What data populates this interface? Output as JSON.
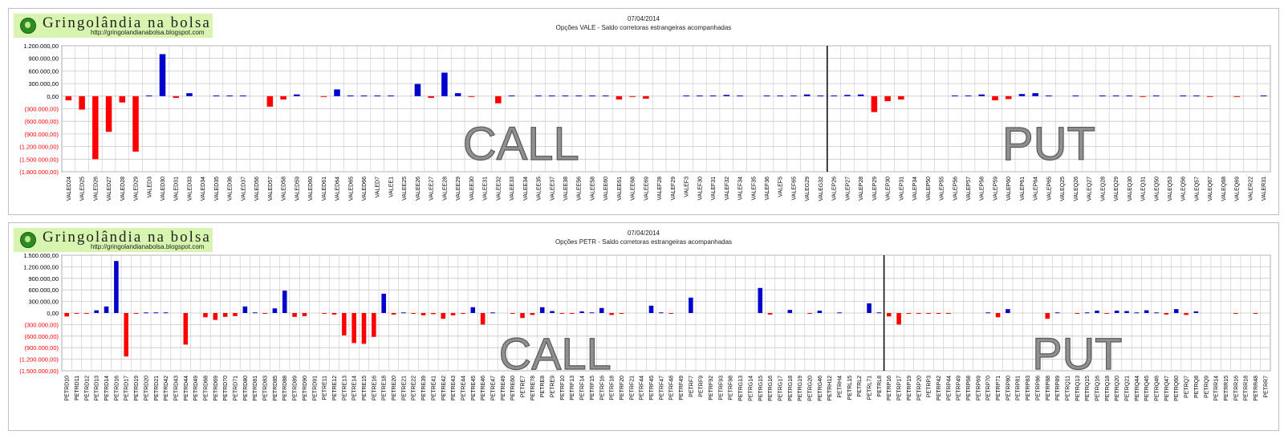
{
  "panels": [
    {
      "logo": {
        "title": "Gringolândia na bolsa",
        "url": "http://gringolandianabolsa.blogspot.com"
      },
      "date": "07/04/2014",
      "title": "Opções VALE - Saldo corretoras estrangeiras acompanhadas"
    },
    {
      "logo": {
        "title": "Gringolândia na bolsa",
        "url": "http://gringolandianabolsa.blogspot.com"
      },
      "date": "07/04/2014",
      "title": "Opções PETR - Saldo corretoras estrangeiras acompanhadas"
    }
  ],
  "colors": {
    "positive": "#0000cc",
    "negative": "#ff0000",
    "grid": "#c8c8c8",
    "divider": "#000000",
    "big_text": "#909090"
  },
  "chart_data": [
    {
      "type": "bar",
      "ylim": [
        -1800000,
        1200000
      ],
      "yticks": [
        1200000,
        900000,
        600000,
        300000,
        0,
        -300000,
        -600000,
        -900000,
        -1200000,
        -1500000,
        -1800000
      ],
      "ytick_labels": [
        "1.200.000,00",
        "900.000,00",
        "600.000,00",
        "300.000,00",
        "0,00",
        "(300.000,00)",
        "(600.000,00)",
        "(900.000,00)",
        "(1.200.000,00)",
        "(1.500.000,00)",
        "(1.800.000,00)"
      ],
      "grid": true,
      "annotations": [
        "CALL",
        "PUT"
      ],
      "categories": [
        "VALED24",
        "VALED25",
        "VALED26",
        "VALED27",
        "VALED28",
        "VALED29",
        "VALED3",
        "VALED30",
        "VALED31",
        "VALED33",
        "VALED34",
        "VALED35",
        "VALED36",
        "VALED37",
        "VALED56",
        "VALED57",
        "VALED58",
        "VALED59",
        "VALED60",
        "VALED61",
        "VALED64",
        "VALED65",
        "VALED66",
        "VALED7",
        "VALEE1",
        "VALEE25",
        "VALEE26",
        "VALEE27",
        "VALEE28",
        "VALEE29",
        "VALEE30",
        "VALEE31",
        "VALEE32",
        "VALEE33",
        "VALEE34",
        "VALEE35",
        "VALEE37",
        "VALEE38",
        "VALEE56",
        "VALEE58",
        "VALEE60",
        "VALEE61",
        "VALEE68",
        "VALEE69",
        "VALEF28",
        "VALEF29",
        "VALEF3",
        "VALEF30",
        "VALEF31",
        "VALEF32",
        "VALEF34",
        "VALEF35",
        "VALEF36",
        "VALEF5",
        "VALEF65",
        "VALEG29",
        "VALEG32",
        "VALEP26",
        "VALEP27",
        "VALEP28",
        "VALEP29",
        "VALEP30",
        "VALEP31",
        "VALEP34",
        "VALEP50",
        "VALEP55",
        "VALEP56",
        "VALEP57",
        "VALEP58",
        "VALEP59",
        "VALEP60",
        "VALEP61",
        "VALEP64",
        "VALEP65",
        "VALEQ25",
        "VALEQ26",
        "VALEQ27",
        "VALEQ28",
        "VALEQ29",
        "VALEQ30",
        "VALEQ31",
        "VALEQ50",
        "VALEQ53",
        "VALEQ56",
        "VALEQ57",
        "VALEQ67",
        "VALEQ68",
        "VALEQ69",
        "VALER22",
        "VALER31"
      ],
      "values": [
        -100000,
        -320000,
        -1500000,
        -850000,
        -150000,
        -1320000,
        15000,
        1000000,
        -40000,
        70000,
        0,
        15000,
        15000,
        15000,
        0,
        -250000,
        -80000,
        40000,
        0,
        -15000,
        160000,
        15000,
        15000,
        15000,
        15000,
        0,
        290000,
        -40000,
        560000,
        70000,
        -15000,
        0,
        -170000,
        15000,
        0,
        15000,
        15000,
        15000,
        15000,
        15000,
        15000,
        -80000,
        -15000,
        -60000,
        0,
        0,
        15000,
        15000,
        15000,
        30000,
        15000,
        0,
        15000,
        15000,
        15000,
        40000,
        15000,
        15000,
        30000,
        40000,
        -380000,
        -120000,
        -80000,
        0,
        0,
        0,
        15000,
        15000,
        40000,
        -100000,
        -70000,
        50000,
        70000,
        15000,
        0,
        15000,
        0,
        15000,
        15000,
        15000,
        -15000,
        15000,
        0,
        15000,
        15000,
        -15000,
        0,
        -15000,
        0,
        15000
      ],
      "divider_after": 56
    },
    {
      "type": "bar",
      "ylim": [
        -1500000,
        1500000
      ],
      "yticks": [
        1500000,
        1200000,
        900000,
        600000,
        300000,
        0,
        -300000,
        -600000,
        -900000,
        -1200000,
        -1500000
      ],
      "ytick_labels": [
        "1.500.000,00",
        "1.200.000,00",
        "900.000,00",
        "600.000,00",
        "300.000,00",
        "0,00",
        "(300.000,00)",
        "(600.000,00)",
        "(900.000,00)",
        "(1.200.000,00)",
        "(1.500.000,00)"
      ],
      "grid": true,
      "annotations": [
        "CALL",
        "PUT"
      ],
      "categories": [
        "PETRD10",
        "PETRD11",
        "PETRD12",
        "PETRD13",
        "PETRD14",
        "PETRD16",
        "PETRD17",
        "PETRD19",
        "PETRD20",
        "PETRD21",
        "PETRD42",
        "PETRD43",
        "PETRD44",
        "PETRD49",
        "PETRD68",
        "PETRD69",
        "PETRD70",
        "PETRD71",
        "PETRD80",
        "PETRD81",
        "PETRD83",
        "PETRD85",
        "PETRD88",
        "PETRD89",
        "PETRD90",
        "PETRD91",
        "PETRE11",
        "PETRE12",
        "PETRE13",
        "PETRE14",
        "PETRE15",
        "PETRE16",
        "PETRE18",
        "PETRE20",
        "PETRE21",
        "PETRE22",
        "PETRE39",
        "PETRE41",
        "PETRE42",
        "PETRE43",
        "PETRE44",
        "PETRE45",
        "PETRE46",
        "PETRE47",
        "PETRE49",
        "PETRE60",
        "PETRE7",
        "PETRE78",
        "PETRE8",
        "PETRE9",
        "PETRF10",
        "PETRF13",
        "PETRF14",
        "PETRF15",
        "PETRF16",
        "PETRF18",
        "PETRF20",
        "PETRF21",
        "PETRF44",
        "PETRF45",
        "PETRF47",
        "PETRF48",
        "PETRF49",
        "PETRF7",
        "PETRF9",
        "PETRF92",
        "PETRF93",
        "PETRF98",
        "PETRG13",
        "PETRG14",
        "PETRG15",
        "PETRG16",
        "PETRG17",
        "PETRG18",
        "PETRG19",
        "PETRG20",
        "PETRG46",
        "PETRH12",
        "PETRH4",
        "PETRL15",
        "PETRL2",
        "PETRL71",
        "PETRL8",
        "PETRP16",
        "PETRP17",
        "PETRP19",
        "PETRP20",
        "PETRP3",
        "PETRP42",
        "PETRP44",
        "PETRP49",
        "PETRP68",
        "PETRP69",
        "PETRP70",
        "PETRP71",
        "PETRP80",
        "PETRP81",
        "PETRP83",
        "PETRP86",
        "PETRP88",
        "PETRP89",
        "PETRQ11",
        "PETRQ13",
        "PETRQ15",
        "PETRQ16",
        "PETRQ18",
        "PETRQ20",
        "PETRQ21",
        "PETRQ44",
        "PETRQ45",
        "PETRQ46",
        "PETRQ47",
        "PETRQ60",
        "PETRQ7",
        "PETRQ8",
        "PETRQ9",
        "PETRR14",
        "PETRR15",
        "PETRR16",
        "PETRR18",
        "PETRR48",
        "PETRR7"
      ],
      "values": [
        -90000,
        -15000,
        -15000,
        70000,
        170000,
        1350000,
        -1130000,
        -15000,
        15000,
        15000,
        15000,
        0,
        -820000,
        0,
        -110000,
        -180000,
        -100000,
        -80000,
        170000,
        15000,
        -15000,
        120000,
        580000,
        -100000,
        -80000,
        0,
        -15000,
        -40000,
        -580000,
        -780000,
        -800000,
        -620000,
        500000,
        -40000,
        15000,
        -15000,
        -60000,
        -30000,
        -150000,
        -60000,
        -15000,
        150000,
        -300000,
        15000,
        0,
        -15000,
        -130000,
        -50000,
        150000,
        50000,
        -15000,
        -15000,
        40000,
        15000,
        130000,
        -50000,
        -15000,
        0,
        0,
        190000,
        15000,
        -15000,
        0,
        400000,
        0,
        0,
        0,
        0,
        0,
        0,
        650000,
        -40000,
        0,
        80000,
        0,
        -15000,
        60000,
        0,
        15000,
        0,
        0,
        250000,
        15000,
        -90000,
        -300000,
        -15000,
        -15000,
        -15000,
        -15000,
        -15000,
        0,
        0,
        0,
        15000,
        -110000,
        100000,
        0,
        0,
        0,
        -150000,
        15000,
        0,
        -15000,
        15000,
        60000,
        -15000,
        60000,
        50000,
        15000,
        70000,
        15000,
        -40000,
        100000,
        -50000,
        40000,
        0,
        0,
        0,
        -15000,
        0,
        -15000,
        0
      ],
      "divider_after": 82
    }
  ]
}
